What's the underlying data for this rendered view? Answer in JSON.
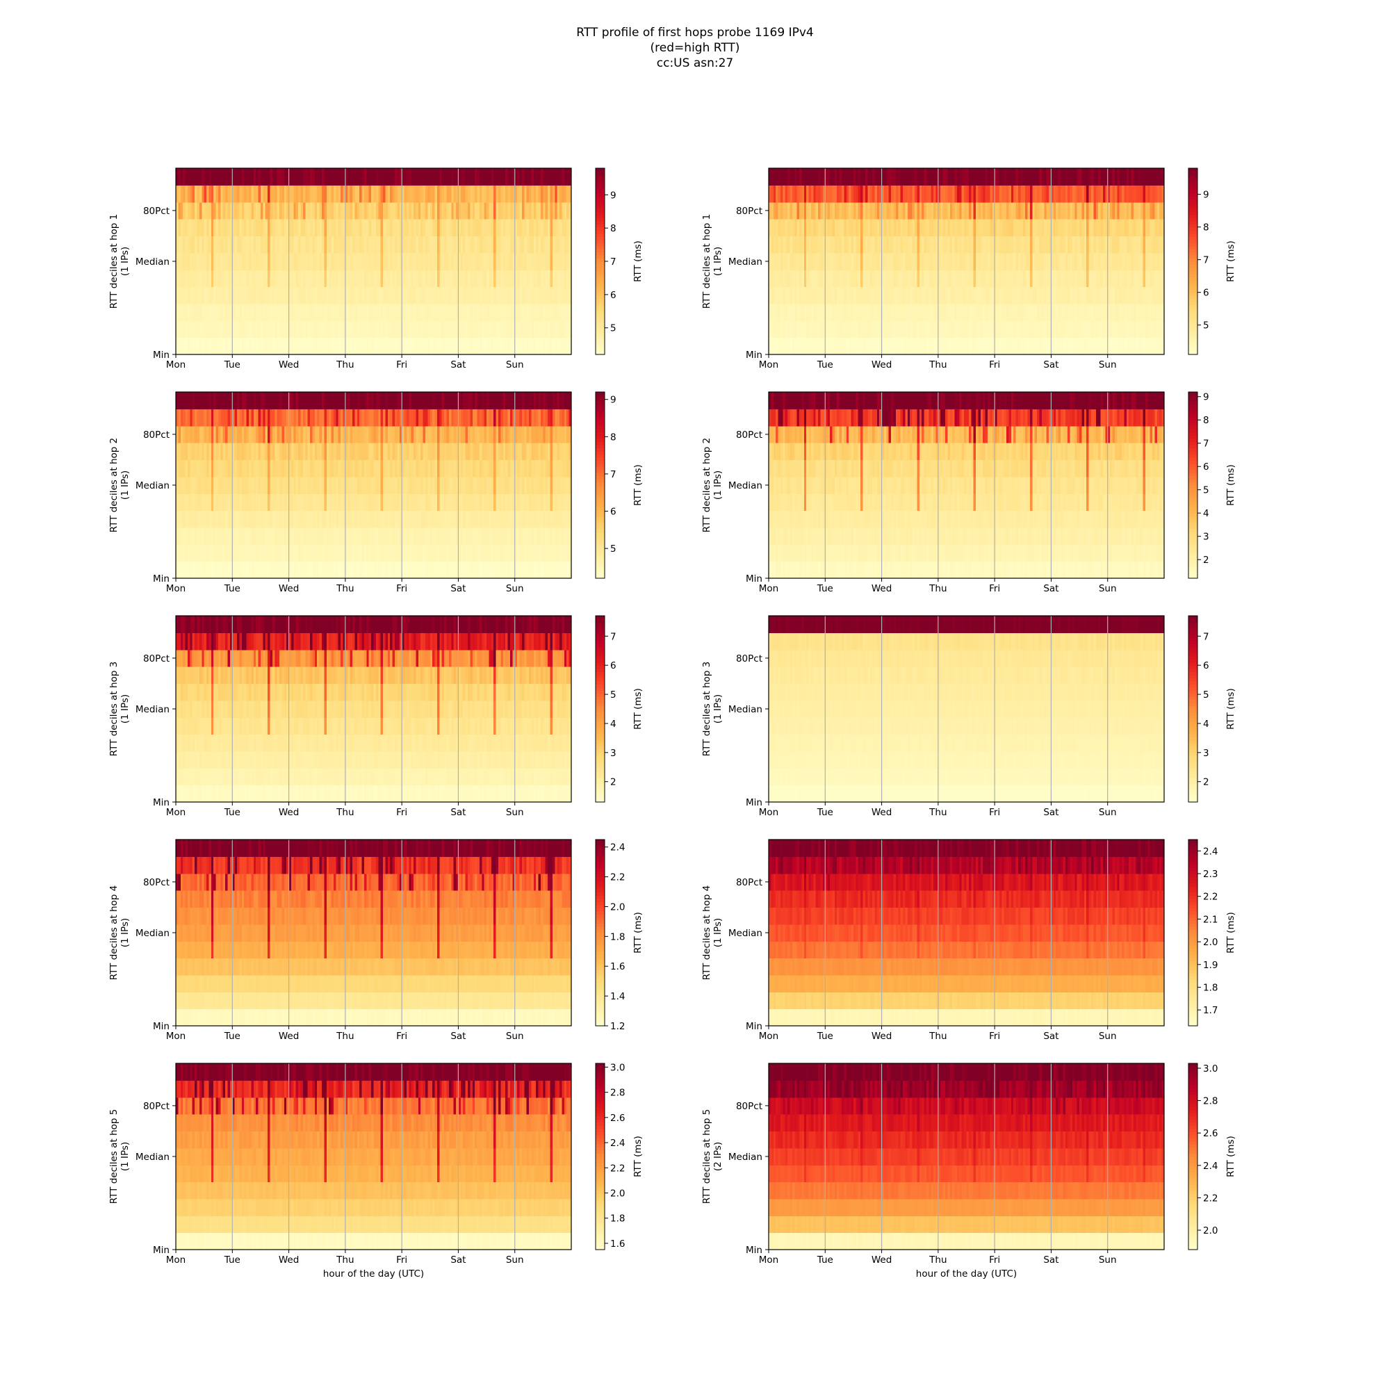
{
  "figure": {
    "title_lines": [
      "RTT profile of first hops probe 1169 IPv4",
      "(red=high RTT)",
      "cc:US asn:27"
    ]
  },
  "chart_data": [
    {
      "type": "heatmap",
      "hop": 1,
      "ylabel_line1": "RTT deciles at hop 1",
      "ylabel_line2": "(1 IPs)",
      "yticks": [
        "Min",
        "Median",
        "80Pct"
      ],
      "xticks": [
        "Mon",
        "Tue",
        "Wed",
        "Thu",
        "Fri",
        "Sat",
        "Sun"
      ],
      "xlabel": "",
      "colorbar": {
        "label": "RTT (ms)",
        "range": [
          4.2,
          9.8
        ],
        "ticks": [
          5,
          6,
          7,
          8,
          9
        ]
      },
      "deciles_ms": [
        4.3,
        4.5,
        4.6,
        4.8,
        4.9,
        5.1,
        5.2,
        5.4,
        5.7,
        6.2,
        9.8
      ],
      "spikes": "moderate"
    },
    {
      "type": "heatmap",
      "hop": 1,
      "ylabel_line1": "RTT deciles at hop 1",
      "ylabel_line2": "(1 IPs)",
      "yticks": [
        "Min",
        "Median",
        "80Pct"
      ],
      "xticks": [
        "Mon",
        "Tue",
        "Wed",
        "Thu",
        "Fri",
        "Sat",
        "Sun"
      ],
      "xlabel": "",
      "colorbar": {
        "label": "RTT (ms)",
        "range": [
          4.1,
          9.8
        ],
        "ticks": [
          5,
          6,
          7,
          8,
          9
        ]
      },
      "deciles_ms": [
        4.2,
        4.4,
        4.5,
        4.7,
        4.8,
        5.0,
        5.2,
        5.5,
        6.0,
        7.5,
        9.8
      ],
      "spikes": "moderate"
    },
    {
      "type": "heatmap",
      "hop": 2,
      "ylabel_line1": "RTT deciles at hop 2",
      "ylabel_line2": "(1 IPs)",
      "yticks": [
        "Min",
        "Median",
        "80Pct"
      ],
      "xticks": [
        "Mon",
        "Tue",
        "Wed",
        "Thu",
        "Fri",
        "Sat",
        "Sun"
      ],
      "xlabel": "",
      "colorbar": {
        "label": "RTT (ms)",
        "range": [
          4.2,
          9.2
        ],
        "ticks": [
          5,
          6,
          7,
          8,
          9
        ]
      },
      "deciles_ms": [
        4.3,
        4.5,
        4.6,
        4.8,
        5.0,
        5.2,
        5.4,
        5.6,
        6.0,
        7.0,
        9.2
      ],
      "spikes": "moderate"
    },
    {
      "type": "heatmap",
      "hop": 2,
      "ylabel_line1": "RTT deciles at hop 2",
      "ylabel_line2": "(1 IPs)",
      "yticks": [
        "Min",
        "Median",
        "80Pct"
      ],
      "xticks": [
        "Mon",
        "Tue",
        "Wed",
        "Thu",
        "Fri",
        "Sat",
        "Sun"
      ],
      "xlabel": "",
      "colorbar": {
        "label": "RTT (ms)",
        "range": [
          1.2,
          9.2
        ],
        "ticks": [
          2,
          3,
          4,
          5,
          6,
          7,
          8,
          9
        ]
      },
      "deciles_ms": [
        1.5,
        1.8,
        2.0,
        2.2,
        2.4,
        2.6,
        2.9,
        3.3,
        4.0,
        6.5,
        9.2
      ],
      "spikes": "strong"
    },
    {
      "type": "heatmap",
      "hop": 3,
      "ylabel_line1": "RTT deciles at hop 3",
      "ylabel_line2": "(1 IPs)",
      "yticks": [
        "Min",
        "Median",
        "80Pct"
      ],
      "xticks": [
        "Mon",
        "Tue",
        "Wed",
        "Thu",
        "Fri",
        "Sat",
        "Sun"
      ],
      "xlabel": "",
      "colorbar": {
        "label": "RTT (ms)",
        "range": [
          1.3,
          7.7
        ],
        "ticks": [
          2,
          3,
          4,
          5,
          6,
          7
        ]
      },
      "deciles_ms": [
        1.5,
        1.8,
        2.0,
        2.2,
        2.4,
        2.6,
        2.9,
        3.3,
        4.2,
        6.0,
        7.7
      ],
      "spikes": "strong"
    },
    {
      "type": "heatmap",
      "hop": 3,
      "ylabel_line1": "RTT deciles at hop 3",
      "ylabel_line2": "(1 IPs)",
      "yticks": [
        "Min",
        "Median",
        "80Pct"
      ],
      "xticks": [
        "Mon",
        "Tue",
        "Wed",
        "Thu",
        "Fri",
        "Sat",
        "Sun"
      ],
      "xlabel": "",
      "colorbar": {
        "label": "RTT (ms)",
        "range": [
          1.3,
          7.7
        ],
        "ticks": [
          2,
          3,
          4,
          5,
          6,
          7
        ]
      },
      "deciles_ms": [
        1.4,
        1.6,
        1.7,
        1.8,
        1.9,
        2.0,
        2.1,
        2.2,
        2.3,
        2.5,
        7.7
      ],
      "spikes": "none"
    },
    {
      "type": "heatmap",
      "hop": 4,
      "ylabel_line1": "RTT deciles at hop 4",
      "ylabel_line2": "(1 IPs)",
      "yticks": [
        "Min",
        "Median",
        "80Pct"
      ],
      "xticks": [
        "Mon",
        "Tue",
        "Wed",
        "Thu",
        "Fri",
        "Sat",
        "Sun"
      ],
      "xlabel": "",
      "colorbar": {
        "label": "RTT (ms)",
        "range": [
          1.2,
          2.45
        ],
        "ticks": [
          1.2,
          1.4,
          1.6,
          1.8,
          2.0,
          2.2,
          2.4
        ]
      },
      "deciles_ms": [
        1.25,
        1.4,
        1.5,
        1.6,
        1.68,
        1.75,
        1.8,
        1.85,
        1.92,
        2.05,
        2.45
      ],
      "spikes": "strong"
    },
    {
      "type": "heatmap",
      "hop": 4,
      "ylabel_line1": "RTT deciles at hop 4",
      "ylabel_line2": "(1 IPs)",
      "yticks": [
        "Min",
        "Median",
        "80Pct"
      ],
      "xticks": [
        "Mon",
        "Tue",
        "Wed",
        "Thu",
        "Fri",
        "Sat",
        "Sun"
      ],
      "xlabel": "",
      "colorbar": {
        "label": "RTT (ms)",
        "range": [
          1.63,
          2.45
        ],
        "ticks": [
          1.7,
          1.8,
          1.9,
          2.0,
          2.1,
          2.2,
          2.3,
          2.4
        ]
      },
      "deciles_ms": [
        1.68,
        1.85,
        1.95,
        2.02,
        2.08,
        2.13,
        2.17,
        2.21,
        2.26,
        2.35,
        2.45
      ],
      "spikes": "mild"
    },
    {
      "type": "heatmap",
      "hop": 5,
      "ylabel_line1": "RTT deciles at hop 5",
      "ylabel_line2": "(1 IPs)",
      "yticks": [
        "Min",
        "Median",
        "80Pct"
      ],
      "xticks": [
        "Mon",
        "Tue",
        "Wed",
        "Thu",
        "Fri",
        "Sat",
        "Sun"
      ],
      "xlabel": "hour of the day (UTC)",
      "colorbar": {
        "label": "RTT (ms)",
        "range": [
          1.55,
          3.03
        ],
        "ticks": [
          1.6,
          1.8,
          2.0,
          2.2,
          2.4,
          2.6,
          2.8,
          3.0
        ]
      },
      "deciles_ms": [
        1.6,
        1.85,
        1.95,
        2.03,
        2.1,
        2.15,
        2.2,
        2.27,
        2.35,
        2.6,
        3.03
      ],
      "spikes": "strong"
    },
    {
      "type": "heatmap",
      "hop": 5,
      "ylabel_line1": "RTT deciles at hop 5",
      "ylabel_line2": "(2 IPs)",
      "yticks": [
        "Min",
        "Median",
        "80Pct"
      ],
      "xticks": [
        "Mon",
        "Tue",
        "Wed",
        "Thu",
        "Fri",
        "Sat",
        "Sun"
      ],
      "xlabel": "hour of the day (UTC)",
      "colorbar": {
        "label": "RTT (ms)",
        "range": [
          1.88,
          3.03
        ],
        "ticks": [
          2.0,
          2.2,
          2.4,
          2.6,
          2.8,
          3.0
        ]
      },
      "deciles_ms": [
        1.95,
        2.25,
        2.4,
        2.5,
        2.58,
        2.64,
        2.7,
        2.76,
        2.82,
        2.95,
        3.03
      ],
      "spikes": "mild"
    }
  ]
}
